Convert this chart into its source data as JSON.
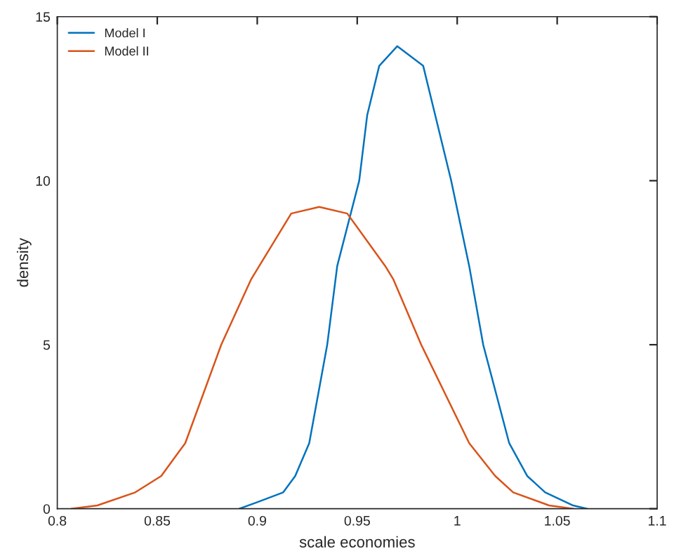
{
  "chart_data": {
    "type": "line",
    "xlabel": "scale economies",
    "ylabel": "density",
    "xlim": [
      0.8,
      1.1
    ],
    "xticks": [
      0.8,
      0.85,
      0.9,
      0.95,
      1,
      1.05,
      1.1
    ],
    "ylim": [
      0,
      15
    ],
    "yticks": [
      0,
      5,
      10,
      15
    ],
    "grid": false,
    "legend": "top left",
    "marker": "none",
    "line_style": "solid",
    "series": [
      {
        "name": "Model I",
        "color": "#0072bd",
        "x": [
          0.891,
          0.9,
          0.913,
          0.919,
          0.926,
          0.935,
          0.94,
          0.951,
          0.955,
          0.961,
          0.97,
          0.983,
          0.989,
          0.997,
          1.006,
          1.013,
          1.026,
          1.035,
          1.044,
          1.058,
          1.065
        ],
        "values": [
          0,
          0.2,
          0.5,
          1,
          2,
          5,
          7.4,
          10,
          12,
          13.5,
          14.1,
          13.5,
          12,
          10,
          7.4,
          5,
          2,
          1,
          0.5,
          0.1,
          0
        ]
      },
      {
        "name": "Model II",
        "color": "#d95319",
        "x": [
          0.807,
          0.82,
          0.839,
          0.852,
          0.864,
          0.882,
          0.897,
          0.901,
          0.917,
          0.931,
          0.945,
          0.964,
          0.968,
          0.982,
          1.006,
          1.019,
          1.028,
          1.046,
          1.058
        ],
        "values": [
          0,
          0.1,
          0.5,
          1,
          2,
          5,
          7,
          7.4,
          9,
          9.2,
          9,
          7.4,
          7,
          5,
          2,
          1,
          0.5,
          0.1,
          0
        ]
      }
    ]
  }
}
